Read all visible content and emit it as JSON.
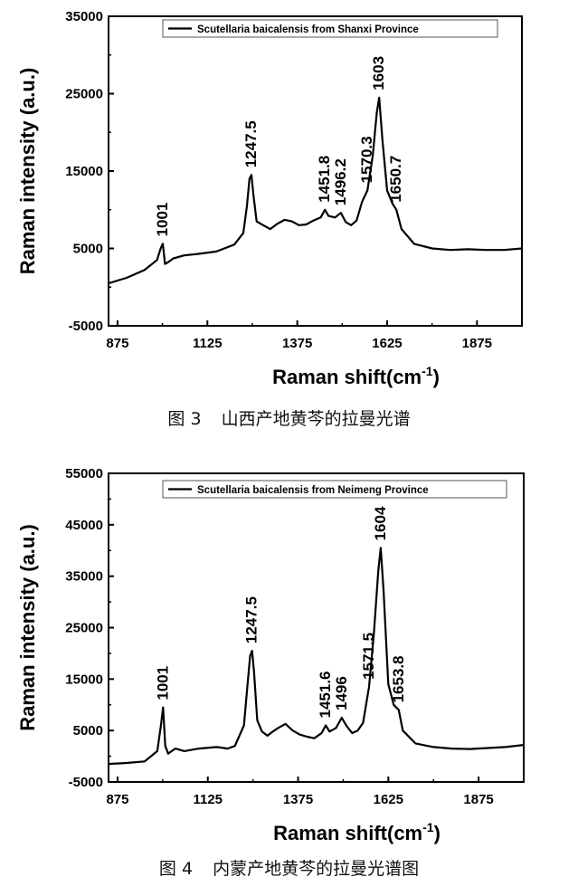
{
  "charts": [
    {
      "caption_number": "图 3",
      "caption_text": "山西产地黄芩的拉曼光谱"
    },
    {
      "caption_number": "图 4",
      "caption_text": "内蒙产地黄芩的拉曼光谱图"
    }
  ],
  "chart_data": [
    {
      "type": "line",
      "title": "",
      "xlabel": "Raman shift(cm-1)",
      "ylabel": "Raman intensity (a.u.)",
      "xlim": [
        850,
        2000
      ],
      "ylim": [
        -5000,
        35000
      ],
      "xticks": [
        "875",
        "1125",
        "1375",
        "1625",
        "1875"
      ],
      "yticks": [
        "-5000",
        "5000",
        "15000",
        "25000",
        "35000"
      ],
      "legend_position": "top-right",
      "series": [
        {
          "name": "Scutellaria baicalensis from Shanxi Province",
          "x": [
            850,
            900,
            950,
            985,
            995,
            1001,
            1007,
            1015,
            1030,
            1060,
            1100,
            1150,
            1200,
            1225,
            1235,
            1242,
            1247.5,
            1253,
            1262,
            1280,
            1300,
            1320,
            1340,
            1360,
            1380,
            1400,
            1420,
            1440,
            1451.8,
            1462,
            1480,
            1496.2,
            1510,
            1525,
            1540,
            1555,
            1570.3,
            1585,
            1596,
            1603,
            1612,
            1625,
            1640,
            1650.7,
            1665,
            1700,
            1750,
            1800,
            1850,
            1900,
            1950,
            2000
          ],
          "y": [
            500,
            1200,
            2200,
            3500,
            5000,
            5600,
            3000,
            3200,
            3700,
            4100,
            4300,
            4600,
            5500,
            7000,
            10500,
            14000,
            14500,
            12000,
            8500,
            8000,
            7500,
            8200,
            8700,
            8500,
            8000,
            8100,
            8600,
            9000,
            10000,
            9200,
            9000,
            9600,
            8400,
            8000,
            8600,
            11000,
            12500,
            17000,
            22500,
            24500,
            19000,
            12500,
            10800,
            10000,
            7500,
            5600,
            5000,
            4800,
            4900,
            4800,
            4800,
            5000
          ]
        }
      ],
      "peak_labels": [
        "1001",
        "1247.5",
        "1451.8",
        "1496.2",
        "1570.3",
        "1603",
        "1650.7"
      ]
    },
    {
      "type": "line",
      "title": "",
      "xlabel": "Raman shift(cm-1)",
      "ylabel": "Raman intensity (a.u.)",
      "xlim": [
        850,
        2000
      ],
      "ylim": [
        -5000,
        55000
      ],
      "xticks": [
        "875",
        "1125",
        "1375",
        "1625",
        "1875"
      ],
      "yticks": [
        "-5000",
        "5000",
        "15000",
        "25000",
        "35000",
        "45000",
        "55000"
      ],
      "legend_position": "top-right",
      "series": [
        {
          "name": "Scutellaria baicalensis from Neimeng Province",
          "x": [
            850,
            900,
            950,
            985,
            995,
            1001,
            1007,
            1015,
            1025,
            1035,
            1060,
            1100,
            1150,
            1180,
            1200,
            1225,
            1235,
            1242,
            1247.5,
            1253,
            1262,
            1275,
            1290,
            1305,
            1320,
            1340,
            1360,
            1380,
            1400,
            1420,
            1440,
            1451.6,
            1462,
            1480,
            1496,
            1510,
            1525,
            1540,
            1555,
            1571.5,
            1585,
            1597,
            1604,
            1612,
            1625,
            1640,
            1653.8,
            1665,
            1700,
            1750,
            1800,
            1850,
            1900,
            1950,
            2000
          ],
          "y": [
            -1500,
            -1300,
            -1000,
            1000,
            6000,
            9500,
            2000,
            500,
            1000,
            1500,
            1000,
            1500,
            1800,
            1500,
            2000,
            6000,
            14000,
            19500,
            20500,
            16500,
            7000,
            4800,
            4000,
            4800,
            5500,
            6300,
            5000,
            4200,
            3800,
            3500,
            4500,
            6000,
            4800,
            5500,
            7500,
            5800,
            4500,
            5000,
            6500,
            13500,
            24000,
            36000,
            40500,
            32000,
            14000,
            10000,
            9000,
            5000,
            2500,
            1800,
            1500,
            1400,
            1600,
            1800,
            2200
          ]
        }
      ],
      "peak_labels": [
        "1001",
        "1247.5",
        "1451.6",
        "1496",
        "1571.5",
        "1604",
        "1653.8"
      ]
    }
  ]
}
